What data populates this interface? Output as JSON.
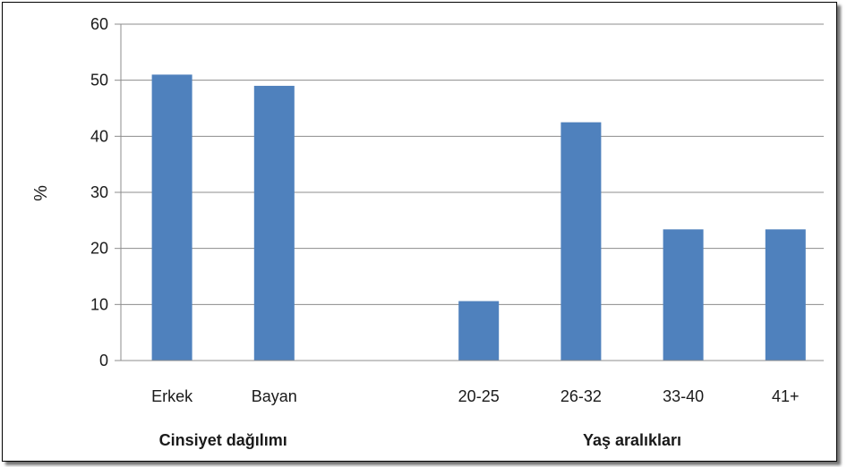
{
  "chart_data": {
    "type": "bar",
    "ylabel": "%",
    "ylim": [
      0,
      60
    ],
    "yticks": [
      0,
      10,
      20,
      30,
      40,
      50,
      60
    ],
    "grid": true,
    "color": "#4f81bd",
    "groups": [
      {
        "label": "Cinsiyet dağılımı",
        "categories": [
          "Erkek",
          "Bayan"
        ],
        "values": [
          51,
          49
        ]
      },
      {
        "label": "Yaş aralıkları",
        "categories": [
          "20-25",
          "26-32",
          "33-40",
          "41+"
        ],
        "values": [
          10.6,
          42.5,
          23.4,
          23.4
        ]
      }
    ]
  }
}
